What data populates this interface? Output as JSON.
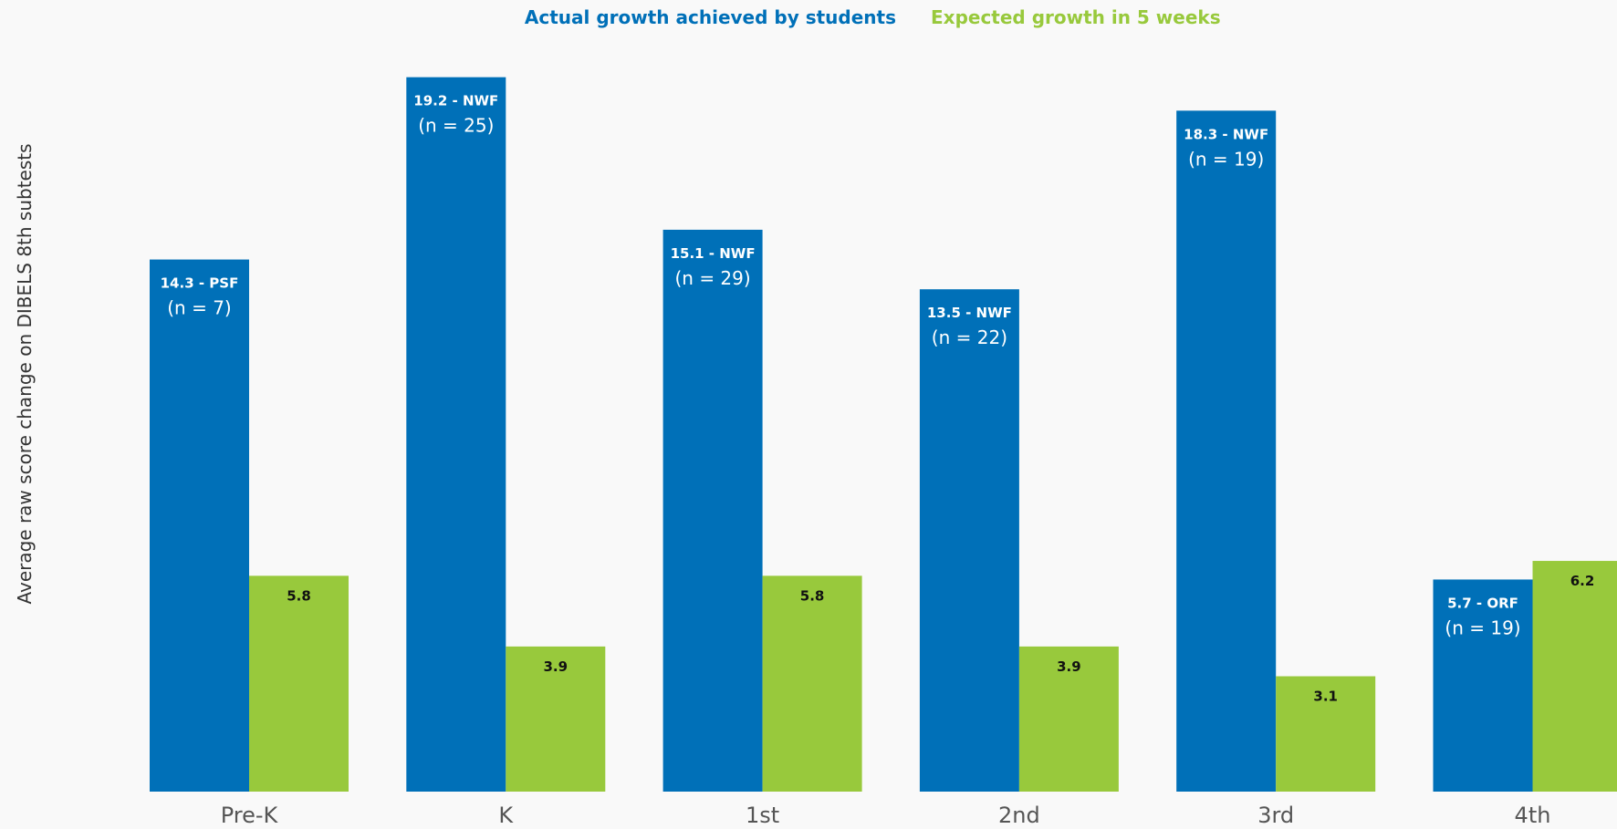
{
  "chart_data": {
    "type": "bar",
    "categories": [
      "Pre-K",
      "K",
      "1st",
      "2nd",
      "3rd",
      "4th"
    ],
    "ylabel": "Average raw score change on DIBELS 8th subtests",
    "xlabel": "",
    "ylim": [
      0,
      22
    ],
    "grid": false,
    "legend_position": "top",
    "series": [
      {
        "name": "Actual growth achieved by students",
        "color": "#0070b8",
        "values": [
          14.3,
          19.2,
          15.1,
          13.5,
          18.3,
          5.7
        ],
        "labels": [
          "14.3 - PSF",
          "19.2 - NWF",
          "15.1 - NWF",
          "13.5 - NWF",
          "18.3 - NWF",
          "5.7 - ORF"
        ],
        "n_labels": [
          "(n = 7)",
          "(n = 25)",
          "(n = 29)",
          "(n = 22)",
          "(n = 19)",
          "(n = 19)"
        ]
      },
      {
        "name": "Expected growth in 5 weeks",
        "color": "#98c93c",
        "values": [
          5.8,
          3.9,
          5.8,
          3.9,
          3.1,
          6.2
        ],
        "labels": [
          "5.8",
          "3.9",
          "5.8",
          "3.9",
          "3.1",
          "6.2"
        ]
      }
    ]
  }
}
